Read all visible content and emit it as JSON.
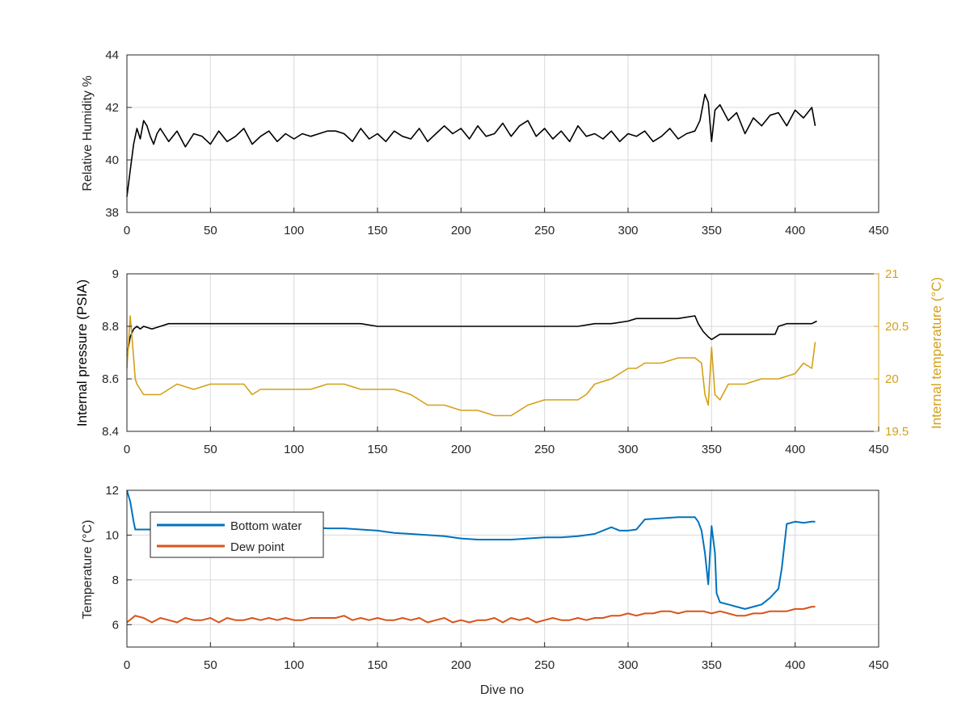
{
  "chart_data": [
    {
      "type": "line",
      "xlabel": "",
      "ylabel": "Relative Humidity %",
      "xlim": [
        0,
        450
      ],
      "ylim": [
        38,
        44
      ],
      "xticks": [
        "0",
        "50",
        "100",
        "150",
        "200",
        "250",
        "300",
        "350",
        "400",
        "450"
      ],
      "yticks": [
        "38",
        "40",
        "42",
        "44"
      ],
      "grid": true,
      "series": [
        {
          "color": "#000000",
          "x": [
            0,
            2,
            4,
            6,
            8,
            10,
            12,
            14,
            16,
            18,
            20,
            25,
            30,
            35,
            40,
            45,
            50,
            55,
            60,
            65,
            70,
            75,
            80,
            85,
            90,
            95,
            100,
            105,
            110,
            115,
            120,
            125,
            130,
            135,
            140,
            145,
            150,
            155,
            160,
            165,
            170,
            175,
            180,
            185,
            190,
            195,
            200,
            205,
            210,
            215,
            220,
            225,
            230,
            235,
            240,
            245,
            250,
            255,
            260,
            265,
            270,
            275,
            280,
            285,
            290,
            295,
            300,
            305,
            310,
            315,
            320,
            325,
            330,
            335,
            340,
            343,
            346,
            348,
            350,
            352,
            355,
            360,
            365,
            370,
            375,
            380,
            385,
            390,
            395,
            400,
            405,
            410,
            412
          ],
          "y": [
            38.6,
            39.6,
            40.6,
            41.2,
            40.8,
            41.5,
            41.3,
            40.9,
            40.6,
            41.0,
            41.2,
            40.7,
            41.1,
            40.5,
            41.0,
            40.9,
            40.6,
            41.1,
            40.7,
            40.9,
            41.2,
            40.6,
            40.9,
            41.1,
            40.7,
            41.0,
            40.8,
            41.0,
            40.9,
            41.0,
            41.1,
            41.1,
            41.0,
            40.7,
            41.2,
            40.8,
            41.0,
            40.7,
            41.1,
            40.9,
            40.8,
            41.2,
            40.7,
            41.0,
            41.3,
            41.0,
            41.2,
            40.8,
            41.3,
            40.9,
            41.0,
            41.4,
            40.9,
            41.3,
            41.5,
            40.9,
            41.2,
            40.8,
            41.1,
            40.7,
            41.3,
            40.9,
            41.0,
            40.8,
            41.1,
            40.7,
            41.0,
            40.9,
            41.1,
            40.7,
            40.9,
            41.2,
            40.8,
            41.0,
            41.1,
            41.5,
            42.5,
            42.2,
            40.7,
            41.9,
            42.1,
            41.5,
            41.8,
            41.0,
            41.6,
            41.3,
            41.7,
            41.8,
            41.3,
            41.9,
            41.6,
            42.0,
            41.3
          ]
        }
      ]
    },
    {
      "type": "line",
      "xlabel": "",
      "ylabel": "Internal pressure (PSIA)",
      "y2label": "Internal temperature (°C)",
      "xlim": [
        0,
        450
      ],
      "ylim": [
        8.4,
        9
      ],
      "y2lim": [
        19.5,
        21
      ],
      "xticks": [
        "0",
        "50",
        "100",
        "150",
        "200",
        "250",
        "300",
        "350",
        "400",
        "450"
      ],
      "yticks": [
        "8.4",
        "8.6",
        "8.8",
        "9"
      ],
      "y2ticks": [
        "19.5",
        "20",
        "20.5",
        "21"
      ],
      "grid": true,
      "series": [
        {
          "axis": "left",
          "color": "#000000",
          "x": [
            0,
            2,
            4,
            6,
            8,
            10,
            15,
            20,
            25,
            30,
            40,
            50,
            60,
            70,
            80,
            90,
            100,
            110,
            120,
            130,
            140,
            150,
            160,
            170,
            180,
            190,
            200,
            210,
            220,
            230,
            240,
            250,
            260,
            270,
            280,
            290,
            300,
            305,
            310,
            320,
            330,
            340,
            342,
            345,
            348,
            350,
            355,
            360,
            370,
            380,
            388,
            390,
            395,
            400,
            405,
            410,
            413
          ],
          "y": [
            8.69,
            8.76,
            8.79,
            8.8,
            8.79,
            8.8,
            8.79,
            8.8,
            8.81,
            8.81,
            8.81,
            8.81,
            8.81,
            8.81,
            8.81,
            8.81,
            8.81,
            8.81,
            8.81,
            8.81,
            8.81,
            8.8,
            8.8,
            8.8,
            8.8,
            8.8,
            8.8,
            8.8,
            8.8,
            8.8,
            8.8,
            8.8,
            8.8,
            8.8,
            8.81,
            8.81,
            8.82,
            8.83,
            8.83,
            8.83,
            8.83,
            8.84,
            8.81,
            8.78,
            8.76,
            8.75,
            8.77,
            8.77,
            8.77,
            8.77,
            8.77,
            8.8,
            8.81,
            8.81,
            8.81,
            8.81,
            8.82
          ]
        },
        {
          "axis": "right",
          "color": "#D4A017",
          "x": [
            0,
            2,
            3,
            4,
            5,
            6,
            8,
            10,
            20,
            25,
            30,
            40,
            50,
            60,
            70,
            75,
            80,
            90,
            100,
            110,
            120,
            130,
            140,
            150,
            160,
            170,
            175,
            180,
            190,
            200,
            210,
            220,
            230,
            240,
            250,
            260,
            270,
            275,
            280,
            290,
            300,
            305,
            310,
            320,
            330,
            340,
            344,
            346,
            348,
            350,
            352,
            355,
            360,
            370,
            380,
            390,
            400,
            405,
            410,
            412
          ],
          "y": [
            20.1,
            20.6,
            20.4,
            20.2,
            20.0,
            19.95,
            19.9,
            19.85,
            19.85,
            19.9,
            19.95,
            19.9,
            19.95,
            19.95,
            19.95,
            19.85,
            19.9,
            19.9,
            19.9,
            19.9,
            19.95,
            19.95,
            19.9,
            19.9,
            19.9,
            19.85,
            19.8,
            19.75,
            19.75,
            19.7,
            19.7,
            19.65,
            19.65,
            19.75,
            19.8,
            19.8,
            19.8,
            19.85,
            19.95,
            20.0,
            20.1,
            20.1,
            20.15,
            20.15,
            20.2,
            20.2,
            20.15,
            19.85,
            19.75,
            20.3,
            19.85,
            19.8,
            19.95,
            19.95,
            20.0,
            20.0,
            20.05,
            20.15,
            20.1,
            20.35
          ]
        }
      ]
    },
    {
      "type": "line",
      "xlabel": "Dive no",
      "ylabel": "Temperature (°C)",
      "xlim": [
        0,
        450
      ],
      "ylim": [
        5,
        12
      ],
      "xticks": [
        "0",
        "50",
        "100",
        "150",
        "200",
        "250",
        "300",
        "350",
        "400",
        "450"
      ],
      "yticks": [
        "6",
        "8",
        "10",
        "12"
      ],
      "grid": true,
      "legend": {
        "position": "top-left",
        "entries": [
          "Bottom water",
          "Dew point"
        ]
      },
      "series": [
        {
          "name": "Bottom water",
          "color": "#0072BD",
          "x": [
            0,
            2,
            4,
            5,
            10,
            20,
            30,
            40,
            50,
            60,
            70,
            80,
            90,
            100,
            110,
            120,
            130,
            140,
            150,
            160,
            170,
            180,
            190,
            200,
            210,
            220,
            230,
            240,
            250,
            260,
            270,
            280,
            290,
            295,
            300,
            305,
            310,
            320,
            330,
            340,
            342,
            344,
            346,
            348,
            350,
            352,
            353,
            355,
            360,
            365,
            370,
            375,
            380,
            385,
            390,
            392,
            395,
            400,
            405,
            410,
            412
          ],
          "y": [
            12,
            11.5,
            10.6,
            10.25,
            10.25,
            10.25,
            10.3,
            10.3,
            10.3,
            10.3,
            10.3,
            10.3,
            10.3,
            10.3,
            10.35,
            10.3,
            10.3,
            10.25,
            10.2,
            10.1,
            10.05,
            10.0,
            9.95,
            9.85,
            9.8,
            9.8,
            9.8,
            9.85,
            9.9,
            9.9,
            9.95,
            10.05,
            10.35,
            10.2,
            10.2,
            10.25,
            10.7,
            10.75,
            10.8,
            10.8,
            10.6,
            10.2,
            9.2,
            7.8,
            10.4,
            9.2,
            7.4,
            7.0,
            6.9,
            6.8,
            6.7,
            6.8,
            6.9,
            7.2,
            7.6,
            8.5,
            10.5,
            10.6,
            10.55,
            10.6,
            10.6
          ]
        },
        {
          "name": "Dew point",
          "color": "#D95319",
          "x": [
            0,
            5,
            10,
            15,
            20,
            25,
            30,
            35,
            40,
            45,
            50,
            55,
            60,
            65,
            70,
            75,
            80,
            85,
            90,
            95,
            100,
            105,
            110,
            115,
            120,
            125,
            130,
            135,
            140,
            145,
            150,
            155,
            160,
            165,
            170,
            175,
            180,
            185,
            190,
            195,
            200,
            205,
            210,
            215,
            220,
            225,
            230,
            235,
            240,
            245,
            250,
            255,
            260,
            265,
            270,
            275,
            280,
            285,
            290,
            295,
            300,
            305,
            310,
            315,
            320,
            325,
            330,
            335,
            340,
            345,
            350,
            355,
            360,
            365,
            370,
            375,
            380,
            385,
            390,
            395,
            400,
            405,
            410,
            412
          ],
          "y": [
            6.1,
            6.4,
            6.3,
            6.1,
            6.3,
            6.2,
            6.1,
            6.3,
            6.2,
            6.2,
            6.3,
            6.1,
            6.3,
            6.2,
            6.2,
            6.3,
            6.2,
            6.3,
            6.2,
            6.3,
            6.2,
            6.2,
            6.3,
            6.3,
            6.3,
            6.3,
            6.4,
            6.2,
            6.3,
            6.2,
            6.3,
            6.2,
            6.2,
            6.3,
            6.2,
            6.3,
            6.1,
            6.2,
            6.3,
            6.1,
            6.2,
            6.1,
            6.2,
            6.2,
            6.3,
            6.1,
            6.3,
            6.2,
            6.3,
            6.1,
            6.2,
            6.3,
            6.2,
            6.2,
            6.3,
            6.2,
            6.3,
            6.3,
            6.4,
            6.4,
            6.5,
            6.4,
            6.5,
            6.5,
            6.6,
            6.6,
            6.5,
            6.6,
            6.6,
            6.6,
            6.5,
            6.6,
            6.5,
            6.4,
            6.4,
            6.5,
            6.5,
            6.6,
            6.6,
            6.6,
            6.7,
            6.7,
            6.8,
            6.8
          ]
        }
      ]
    }
  ]
}
